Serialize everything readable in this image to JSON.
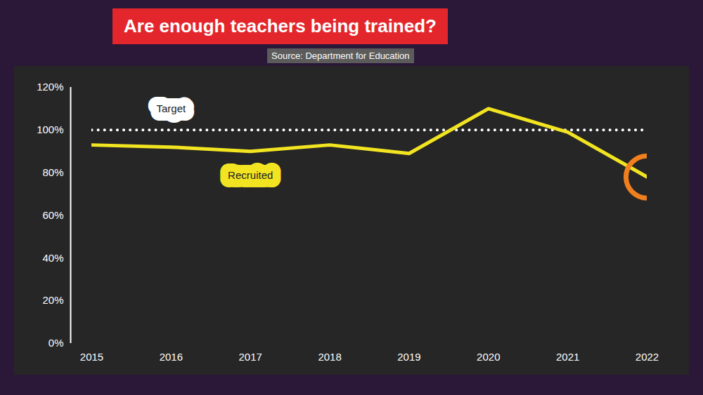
{
  "chart_data": {
    "type": "line",
    "title": "Are enough teachers being trained?",
    "subtitle": "Source: Department for Education",
    "x": [
      2015,
      2016,
      2017,
      2018,
      2019,
      2020,
      2021,
      2022
    ],
    "series": [
      {
        "name": "Target",
        "color": "#ffffff",
        "line_style": "dotted",
        "values": [
          100,
          100,
          100,
          100,
          100,
          100,
          100,
          100
        ]
      },
      {
        "name": "Recruited",
        "color": "#f2e421",
        "line_style": "solid",
        "values": [
          93,
          92,
          90,
          93,
          89,
          110,
          99,
          78
        ]
      }
    ],
    "xlim": [
      2015,
      2022
    ],
    "xticks": [
      2015,
      2016,
      2017,
      2018,
      2019,
      2020,
      2021,
      2022
    ],
    "ylim": [
      0,
      120
    ],
    "yticks": [
      {
        "value": 0,
        "label": "0%"
      },
      {
        "value": 20,
        "label": "20%"
      },
      {
        "value": 40,
        "label": "40%"
      },
      {
        "value": 60,
        "label": "60%"
      },
      {
        "value": 80,
        "label": "80%"
      },
      {
        "value": 100,
        "label": "100%"
      },
      {
        "value": 120,
        "label": "120%"
      }
    ],
    "grid": false
  }
}
